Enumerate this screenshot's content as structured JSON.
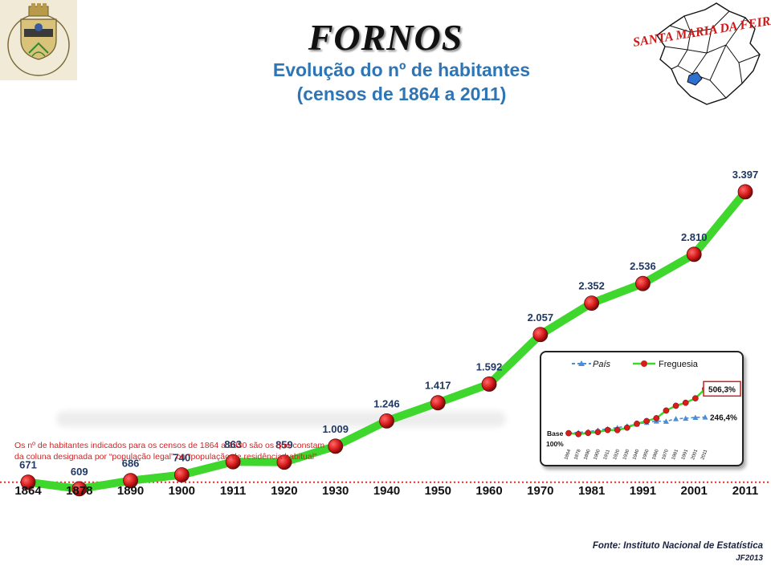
{
  "header": {
    "title": "FORNOS",
    "subtitle_line1": "Evolução do nº de habitantes",
    "subtitle_line2": "(censos de 1864 a 2011)",
    "map_label": "SANTA MARIA DA FEIRA",
    "coat_of_arms_label": "FORNOS·SANTA MARIA DA FEIRA"
  },
  "chart_data": [
    {
      "type": "line",
      "x": [
        "1864",
        "1878",
        "1890",
        "1900",
        "1911",
        "1920",
        "1930",
        "1940",
        "1950",
        "1960",
        "1970",
        "1981",
        "1991",
        "2001",
        "2011"
      ],
      "series": [
        {
          "values": [
            671,
            609,
            686,
            740,
            863,
            859,
            1009,
            1246,
            1417,
            1592,
            2057,
            2352,
            2536,
            2810,
            3397
          ]
        }
      ],
      "data_labels": [
        "671",
        "609",
        "686",
        "740",
        "863",
        "859",
        "1.009",
        "1.246",
        "1.417",
        "1.592",
        "2.057",
        "2.352",
        "2.536",
        "2.810",
        "3.397"
      ],
      "reference_line": 671,
      "ylim": [
        450,
        3600
      ],
      "grid": false,
      "colors": {
        "line": "#3fd62e",
        "marker": "#d81c1c",
        "label": "#1f3864",
        "reference": "#e02020"
      }
    },
    {
      "type": "line",
      "x": [
        "1864",
        "1878",
        "1890",
        "1900",
        "1911",
        "1920",
        "1930",
        "1940",
        "1950",
        "1960",
        "1970",
        "1981",
        "1991",
        "2001",
        "2011"
      ],
      "series": [
        {
          "name": "País",
          "values": [
            100,
            107,
            113,
            127,
            140,
            150,
            166,
            182,
            198,
            210,
            208,
            232,
            236,
            244,
            246.4
          ]
        },
        {
          "name": "Freguesia",
          "values": [
            100,
            91,
            102,
            110,
            129,
            128,
            150,
            186,
            211,
            237,
            307,
            351,
            378,
            419,
            506.3
          ]
        }
      ],
      "annotations": {
        "base": [
          "Base",
          "100%"
        ],
        "pais_end": "246,4%",
        "freguesia_end": "506,3%"
      },
      "legend_position": "top",
      "ylim": [
        60,
        560
      ],
      "colors": {
        "pais": "#4a8fd6",
        "freguesia": "#3fd62e",
        "marker": "#d81c1c"
      }
    }
  ],
  "note": {
    "line1": "Os nº de habitantes indicados para os censos de 1864 a 1930 são os que constam",
    "line2": "da coluna designada por “população legal” ou “população de residência habitual”"
  },
  "footer": {
    "source": "Fonte: Instituto Nacional de Estatística",
    "credit": "JF2013"
  }
}
